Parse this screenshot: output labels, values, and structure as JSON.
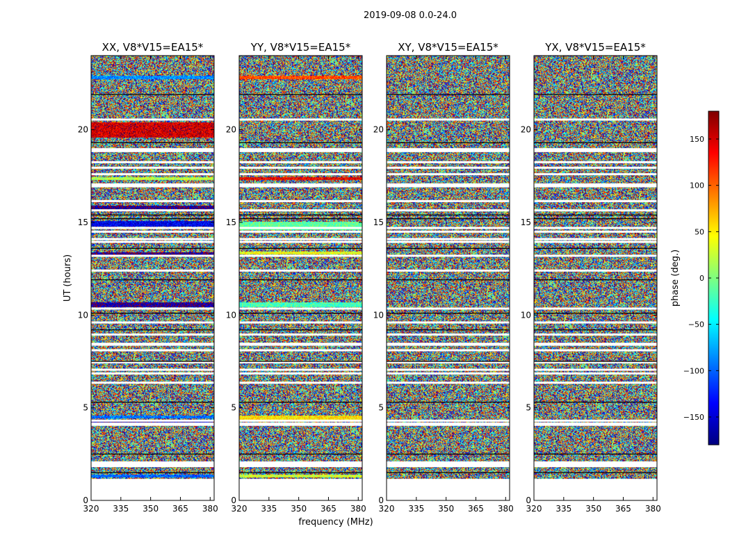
{
  "figure": {
    "suptitle": "2019-09-08 0.0-24.0",
    "ylabel": "UT (hours)",
    "xlabel": "frequency (MHz)"
  },
  "colorbar": {
    "label": "phase (deg.)",
    "range": [
      -180,
      180
    ],
    "ticks": [
      -150,
      -100,
      -50,
      0,
      50,
      100,
      150
    ],
    "tick_labels": [
      "−150",
      "−100",
      "−50",
      "0",
      "50",
      "100",
      "150"
    ],
    "colormap": "jet",
    "colors": [
      "#00007f",
      "#0000ff",
      "#007fff",
      "#00ffff",
      "#7fff7f",
      "#ffff00",
      "#ff7f00",
      "#ff0000",
      "#7f0000"
    ]
  },
  "chart_data": [
    {
      "type": "heatmap",
      "title": "XX, V8*V15=EA15*",
      "xlim": [
        320,
        382
      ],
      "ylim": [
        0,
        24
      ],
      "xticks": [
        320,
        335,
        350,
        365,
        380
      ],
      "xtick_labels": [
        "320",
        "335",
        "350",
        "365",
        "380"
      ],
      "yticks": [
        0,
        5,
        10,
        15,
        20
      ],
      "ytick_labels": [
        "0",
        "5",
        "10",
        "15",
        "20"
      ],
      "data_ut_range": [
        1.2,
        24
      ],
      "values": "noisy phase (random, -180 to 180 deg) with coherent horizontal bands",
      "flagged_ut": [
        1.85,
        1.95,
        2.05,
        4.08,
        4.15,
        4.3,
        6.35,
        6.85,
        7.05,
        7.45,
        8.1,
        8.4,
        8.45,
        8.95,
        9.6,
        10.35,
        12.4,
        13.2,
        13.95,
        14.1,
        14.5,
        14.7,
        15.65,
        16.15,
        16.95,
        17.05,
        17.6,
        17.95,
        18.25,
        18.85,
        18.95,
        20.55
      ],
      "gap_lines_ut": [
        1.5,
        2.5,
        5.3,
        7.5,
        9.2,
        10.1,
        11.9,
        13.6,
        15.2,
        15.4,
        19.3,
        21.9
      ],
      "coherent_bands": [
        {
          "ut": [
            1.25,
            1.4
          ],
          "phase": -100
        },
        {
          "ut": [
            4.45,
            4.6
          ],
          "phase": -95
        },
        {
          "ut": [
            4.2,
            4.28
          ],
          "phase": -160
        },
        {
          "ut": [
            10.45,
            10.7
          ],
          "phase": -165
        },
        {
          "ut": [
            13.25,
            13.4
          ],
          "phase": -170
        },
        {
          "ut": [
            15.75,
            15.9
          ],
          "phase": -170
        },
        {
          "ut": [
            14.8,
            15.1
          ],
          "phase": -140
        },
        {
          "ut": [
            17.3,
            17.45
          ],
          "phase": 20
        },
        {
          "ut": [
            22.75,
            22.95
          ],
          "phase": -85
        },
        {
          "ut": [
            19.6,
            20.4
          ],
          "phase": 150
        }
      ]
    },
    {
      "type": "heatmap",
      "title": "YY, V8*V15=EA15*",
      "xlim": [
        320,
        382
      ],
      "ylim": [
        0,
        24
      ],
      "xticks": [
        320,
        335,
        350,
        365,
        380
      ],
      "xtick_labels": [
        "320",
        "335",
        "350",
        "365",
        "380"
      ],
      "yticks": [
        0,
        5,
        10,
        15,
        20
      ],
      "ytick_labels": [
        "0",
        "5",
        "10",
        "15",
        "20"
      ],
      "data_ut_range": [
        1.2,
        24
      ],
      "values": "noisy phase (random, -180 to 180 deg) with coherent horizontal bands",
      "flagged_ut": [
        1.85,
        1.95,
        2.05,
        4.08,
        4.15,
        4.3,
        6.35,
        6.85,
        7.05,
        7.45,
        8.1,
        8.4,
        8.45,
        8.95,
        9.6,
        10.35,
        12.4,
        13.2,
        13.95,
        14.1,
        14.5,
        14.7,
        15.65,
        16.15,
        16.95,
        17.05,
        17.6,
        17.95,
        18.25,
        18.85,
        18.95,
        20.55
      ],
      "gap_lines_ut": [
        1.5,
        2.5,
        5.3,
        7.5,
        9.2,
        10.1,
        11.9,
        13.6,
        15.2,
        15.4,
        19.3,
        21.9
      ],
      "coherent_bands": [
        {
          "ut": [
            1.25,
            1.4
          ],
          "phase": 30
        },
        {
          "ut": [
            4.35,
            4.6
          ],
          "phase": 55
        },
        {
          "ut": [
            10.45,
            10.7
          ],
          "phase": -20
        },
        {
          "ut": [
            13.3,
            13.45
          ],
          "phase": 40
        },
        {
          "ut": [
            14.6,
            15.05
          ],
          "phase": -10
        },
        {
          "ut": [
            17.3,
            17.45
          ],
          "phase": 140
        },
        {
          "ut": [
            22.75,
            22.95
          ],
          "phase": 110
        }
      ]
    },
    {
      "type": "heatmap",
      "title": "XY, V8*V15=EA15*",
      "xlim": [
        320,
        382
      ],
      "ylim": [
        0,
        24
      ],
      "xticks": [
        320,
        335,
        350,
        365,
        380
      ],
      "xtick_labels": [
        "320",
        "335",
        "350",
        "365",
        "380"
      ],
      "yticks": [
        0,
        5,
        10,
        15,
        20
      ],
      "ytick_labels": [
        "0",
        "5",
        "10",
        "15",
        "20"
      ],
      "data_ut_range": [
        1.2,
        24
      ],
      "values": "noisy phase (random, -180 to 180 deg)",
      "flagged_ut": [
        1.85,
        1.95,
        2.05,
        4.08,
        4.15,
        4.3,
        6.35,
        6.85,
        7.05,
        7.45,
        8.1,
        8.4,
        8.45,
        8.95,
        9.6,
        10.35,
        12.4,
        13.2,
        13.95,
        14.1,
        14.5,
        14.7,
        15.65,
        16.15,
        16.95,
        17.05,
        17.6,
        17.95,
        18.25,
        18.85,
        18.95,
        20.55
      ],
      "gap_lines_ut": [
        1.5,
        2.5,
        5.3,
        7.5,
        9.2,
        10.1,
        11.9,
        13.6,
        15.2,
        15.4,
        19.3,
        21.9
      ],
      "coherent_bands": []
    },
    {
      "type": "heatmap",
      "title": "YX, V8*V15=EA15*",
      "xlim": [
        320,
        382
      ],
      "ylim": [
        0,
        24
      ],
      "xticks": [
        320,
        335,
        350,
        365,
        380
      ],
      "xtick_labels": [
        "320",
        "335",
        "350",
        "365",
        "380"
      ],
      "yticks": [
        0,
        5,
        10,
        15,
        20
      ],
      "ytick_labels": [
        "0",
        "5",
        "10",
        "15",
        "20"
      ],
      "data_ut_range": [
        1.2,
        24
      ],
      "values": "noisy phase (random, -180 to 180 deg)",
      "flagged_ut": [
        1.85,
        1.95,
        2.05,
        4.08,
        4.15,
        4.3,
        6.35,
        6.85,
        7.05,
        7.45,
        8.1,
        8.4,
        8.45,
        8.95,
        9.6,
        10.35,
        12.4,
        13.2,
        13.95,
        14.1,
        14.5,
        14.7,
        15.65,
        16.15,
        16.95,
        17.05,
        17.6,
        17.95,
        18.25,
        18.85,
        18.95,
        20.55
      ],
      "gap_lines_ut": [
        1.5,
        2.5,
        5.3,
        7.5,
        9.2,
        10.1,
        11.9,
        13.6,
        15.2,
        15.4,
        19.3,
        21.9
      ],
      "coherent_bands": []
    }
  ]
}
